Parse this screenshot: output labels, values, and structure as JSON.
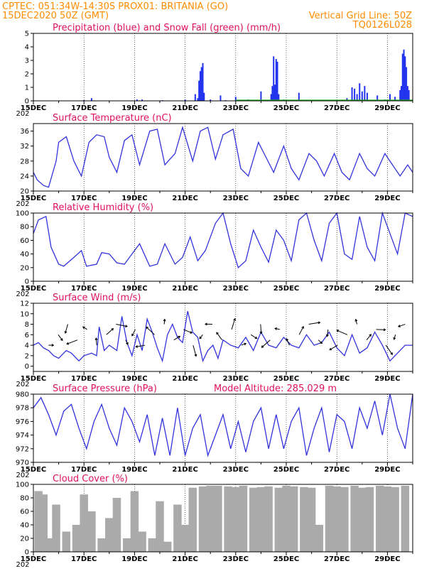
{
  "header": {
    "line1": "CPTEC:   051:34W-14:30S   PROX01: BRITANIA (GO)",
    "line2": "15DEC2020 50Z (GMT)",
    "right1": "Vertical Grid Line: 50Z",
    "right2": "TQ0126L028"
  },
  "x_dates": [
    "15DEC",
    "17DEC",
    "19DEC",
    "21DEC",
    "23DEC",
    "25DEC",
    "27DEC",
    "29DEC"
  ],
  "year_stub": "202",
  "colors": {
    "line": "#3333dd",
    "rain": "#2233ee",
    "snow": "#22aa22",
    "cloud": "#aaaaaa",
    "title": "#e0115f",
    "header": "#ff8c00"
  },
  "chart_data": [
    {
      "type": "bar",
      "title": "Precipitation (blue) and Snow Fall (green) (mm/h)",
      "ylim": [
        0,
        5
      ],
      "yticks": [
        "0",
        "1",
        "2",
        "3",
        "4",
        "5"
      ],
      "x_days": [
        0,
        15
      ],
      "series": [
        {
          "name": "Precipitation",
          "x": [
            2.0,
            2.3,
            4.1,
            4.3,
            5.1,
            6.0,
            6.4,
            7.0,
            7.4,
            7.6,
            8.0,
            8.5,
            9.0,
            9.55,
            9.9,
            10.5,
            12.4,
            12.8,
            13.2,
            13.6,
            13.9,
            14.1,
            14.3,
            14.7,
            6.5,
            6.55,
            6.6,
            6.65,
            6.7,
            6.75,
            9.4,
            9.45,
            9.5,
            9.6,
            9.65,
            9.7,
            12.6,
            12.7,
            12.9,
            13.0,
            13.1,
            13.2,
            14.5,
            14.55,
            14.6,
            14.65,
            14.7,
            14.75,
            14.8,
            14.85
          ],
          "values": [
            0.05,
            0.2,
            0.1,
            0.1,
            0.05,
            0.1,
            0.5,
            0.1,
            0.4,
            0.05,
            0.3,
            0.1,
            0.7,
            1.2,
            0.1,
            0.6,
            0.2,
            0.5,
            0.1,
            0.4,
            0.1,
            0.5,
            0.3,
            0.8,
            0.2,
            1.5,
            2.2,
            2.5,
            2.8,
            0.6,
            0.5,
            1.1,
            3.3,
            3.1,
            2.9,
            0.5,
            1.0,
            0.9,
            1.3,
            0.7,
            1.1,
            0.6,
            0.8,
            1.1,
            3.5,
            3.8,
            3.3,
            2.5,
            1.1,
            0.8
          ]
        },
        {
          "name": "Snow Fall",
          "x": [
            8.3,
            8.9,
            10.1,
            10.4,
            11.0,
            11.5,
            12.1,
            13.5,
            14.2
          ],
          "values": [
            0.05,
            0.05,
            0.08,
            0.05,
            0.05,
            0.05,
            0.05,
            0.05,
            0.06
          ]
        }
      ]
    },
    {
      "type": "line",
      "title": "Surface Temperature (nC)",
      "ylim": [
        20,
        38
      ],
      "yticks": [
        "20",
        "24",
        "28",
        "32",
        "36"
      ],
      "x_days": [
        0,
        15
      ],
      "series": [
        {
          "name": "Temperature",
          "x": [
            0,
            0.15,
            0.4,
            0.6,
            0.9,
            1.0,
            1.3,
            1.6,
            1.9,
            2.2,
            2.5,
            2.8,
            3.0,
            3.3,
            3.6,
            3.9,
            4.2,
            4.6,
            4.9,
            5.2,
            5.6,
            5.9,
            6.3,
            6.6,
            6.9,
            7.2,
            7.5,
            7.9,
            8.2,
            8.5,
            8.9,
            9.2,
            9.5,
            9.9,
            10.2,
            10.5,
            10.9,
            11.2,
            11.5,
            11.9,
            12.2,
            12.5,
            12.9,
            13.2,
            13.5,
            13.9,
            14.2,
            14.5,
            14.8,
            15
          ],
          "values": [
            25,
            23,
            21.5,
            21,
            28,
            33,
            34.5,
            28,
            24,
            33,
            35,
            34.5,
            29,
            25,
            33.5,
            35,
            27,
            36,
            36.5,
            27,
            30,
            37,
            28,
            36,
            37,
            28.5,
            35,
            36.5,
            26,
            24,
            33,
            29,
            25,
            32,
            26,
            23,
            30,
            28,
            24,
            30,
            25,
            23,
            30,
            26,
            24,
            30,
            27,
            24,
            27,
            25
          ]
        }
      ]
    },
    {
      "type": "line",
      "title": "Relative Humidity (%)",
      "ylim": [
        0,
        100
      ],
      "yticks": [
        "0",
        "20",
        "40",
        "60",
        "80",
        "100"
      ],
      "x_days": [
        0,
        15
      ],
      "series": [
        {
          "name": "Humidity",
          "x": [
            0,
            0.2,
            0.5,
            0.7,
            1.0,
            1.2,
            1.6,
            1.9,
            2.1,
            2.5,
            2.7,
            3.0,
            3.3,
            3.6,
            3.9,
            4.2,
            4.6,
            4.9,
            5.2,
            5.6,
            5.9,
            6.2,
            6.5,
            6.8,
            7.2,
            7.5,
            7.8,
            8.1,
            8.4,
            8.7,
            9.0,
            9.3,
            9.6,
            9.9,
            10.2,
            10.5,
            10.8,
            11.1,
            11.4,
            11.7,
            12.0,
            12.3,
            12.6,
            12.9,
            13.2,
            13.5,
            13.8,
            14.1,
            14.4,
            14.7,
            15
          ],
          "values": [
            70,
            90,
            95,
            50,
            25,
            22,
            35,
            45,
            22,
            25,
            42,
            40,
            27,
            25,
            40,
            55,
            22,
            25,
            55,
            25,
            35,
            65,
            30,
            45,
            85,
            100,
            55,
            20,
            30,
            75,
            50,
            28,
            75,
            60,
            30,
            90,
            100,
            60,
            30,
            85,
            100,
            40,
            32,
            95,
            50,
            30,
            100,
            70,
            40,
            100,
            95
          ]
        }
      ]
    },
    {
      "type": "line",
      "title": "Surface Wind (m/s)",
      "ylim": [
        -1,
        12
      ],
      "yticks": [
        "0",
        "2",
        "4",
        "6",
        "8",
        "10",
        "12"
      ],
      "x_days": [
        0,
        15
      ],
      "series": [
        {
          "name": "Wind speed",
          "x": [
            0,
            0.2,
            0.4,
            0.6,
            0.8,
            1.0,
            1.3,
            1.5,
            1.8,
            2.0,
            2.3,
            2.5,
            2.6,
            2.8,
            3.0,
            3.3,
            3.5,
            3.7,
            3.9,
            4.1,
            4.3,
            4.5,
            4.7,
            4.9,
            5.1,
            5.3,
            5.5,
            5.7,
            5.9,
            6.1,
            6.3,
            6.5,
            6.7,
            6.9,
            7.1,
            7.3,
            7.5,
            7.8,
            8.1,
            8.4,
            8.7,
            9.0,
            9.3,
            9.6,
            9.9,
            10.2,
            10.5,
            10.8,
            11.1,
            11.4,
            11.7,
            12.0,
            12.3,
            12.6,
            12.9,
            13.2,
            13.5,
            13.8,
            14.1,
            14.4,
            14.7,
            15
          ],
          "values": [
            4,
            4.5,
            3.5,
            3,
            2,
            1.5,
            3,
            2.5,
            1,
            2,
            2.5,
            2,
            7.5,
            3,
            4,
            3,
            9.5,
            4.5,
            2,
            6,
            3,
            9,
            6.5,
            3.5,
            1,
            6,
            8,
            5.5,
            4.5,
            10.5,
            6.5,
            5.5,
            1,
            3,
            4,
            1.5,
            5,
            4,
            3.5,
            5.5,
            3,
            6.5,
            4,
            3.5,
            5.5,
            4,
            3.5,
            6,
            4,
            4.5,
            6.5,
            3.5,
            2,
            6,
            2.5,
            3.5,
            6.5,
            4,
            1,
            2.5,
            4,
            4
          ]
        }
      ],
      "wind_arrows_count": 38
    },
    {
      "type": "line",
      "title": "Surface Pressure (hPa)",
      "annotation": "Model Altitude: 285.029 m",
      "ylim": [
        970,
        980
      ],
      "yticks": [
        "970",
        "972",
        "974",
        "976",
        "978",
        "980"
      ],
      "x_days": [
        0,
        15
      ],
      "series": [
        {
          "name": "Pressure",
          "x": [
            0,
            0.3,
            0.6,
            0.9,
            1.2,
            1.5,
            1.8,
            2.1,
            2.4,
            2.7,
            3.0,
            3.3,
            3.6,
            3.9,
            4.2,
            4.5,
            4.8,
            5.1,
            5.4,
            5.7,
            6.0,
            6.3,
            6.6,
            6.9,
            7.2,
            7.5,
            7.8,
            8.1,
            8.4,
            8.7,
            9.0,
            9.3,
            9.6,
            9.9,
            10.2,
            10.5,
            10.8,
            11.1,
            11.4,
            11.7,
            12.0,
            12.3,
            12.6,
            12.9,
            13.2,
            13.5,
            13.8,
            14.1,
            14.4,
            14.7,
            15
          ],
          "values": [
            978,
            979.5,
            977,
            974,
            977.5,
            978.5,
            975,
            972,
            976,
            978.5,
            975,
            972.5,
            978,
            976,
            973,
            977,
            971,
            976.5,
            971,
            978,
            971,
            975,
            977,
            971,
            974,
            977,
            972,
            976,
            971.5,
            976,
            978,
            972,
            977,
            972,
            976,
            978,
            971,
            975,
            978,
            971.5,
            977,
            976,
            972,
            978,
            975,
            979,
            974,
            980,
            975,
            972,
            980
          ]
        }
      ]
    },
    {
      "type": "bar",
      "title": "Cloud Cover (%)",
      "ylim": [
        0,
        100
      ],
      "yticks": [
        "0",
        "20",
        "40",
        "60",
        "80",
        "100"
      ],
      "x_days": [
        0,
        15
      ],
      "series": [
        {
          "name": "Cloud cover",
          "x": [
            0.2,
            0.4,
            0.6,
            0.9,
            1.3,
            1.7,
            2.0,
            2.3,
            2.7,
            3.0,
            3.3,
            3.7,
            4.0,
            4.3,
            4.7,
            5.0,
            5.3,
            5.7,
            6.0,
            6.3,
            6.7,
            7.0,
            7.3,
            7.7,
            8.0,
            8.3,
            8.7,
            9.0,
            9.3,
            9.7,
            10.0,
            10.3,
            10.7,
            11.0,
            11.3,
            11.7,
            12.0,
            12.3,
            12.7,
            13.0,
            13.3,
            13.7,
            14.0,
            14.3,
            14.7
          ],
          "values": [
            90,
            85,
            20,
            70,
            30,
            40,
            85,
            60,
            20,
            50,
            80,
            20,
            90,
            30,
            20,
            75,
            15,
            70,
            40,
            95,
            97,
            98,
            98,
            97,
            96,
            98,
            95,
            96,
            97,
            95,
            98,
            97,
            96,
            95,
            40,
            98,
            97,
            96,
            98,
            95,
            96,
            98,
            97,
            96,
            98
          ]
        }
      ]
    }
  ]
}
